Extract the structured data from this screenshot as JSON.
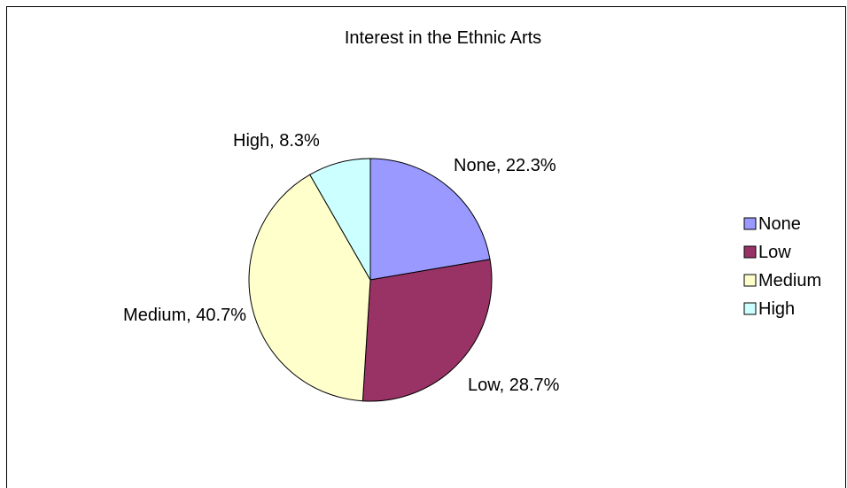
{
  "chart_data": {
    "type": "pie",
    "title": "Interest in the Ethnic Arts",
    "categories": [
      "None",
      "Low",
      "Medium",
      "High"
    ],
    "values": [
      22.3,
      28.7,
      40.7,
      8.3
    ],
    "unit": "%",
    "data_labels": [
      "None, 22.3%",
      "Low, 28.7%",
      "Medium, 40.7%",
      "High, 8.3%"
    ],
    "colors": [
      "#9999ff",
      "#993366",
      "#ffffcc",
      "#ccffff"
    ],
    "start_angle_deg": 0,
    "direction": "clockwise",
    "legend": {
      "position": "right",
      "entries": [
        "None",
        "Low",
        "Medium",
        "High"
      ]
    }
  }
}
